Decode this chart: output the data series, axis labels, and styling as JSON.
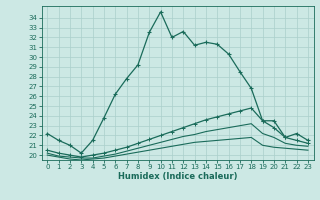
{
  "xlabel": "Humidex (Indice chaleur)",
  "xlim": [
    -0.5,
    23.5
  ],
  "ylim": [
    19.5,
    35.2
  ],
  "xticks": [
    0,
    1,
    2,
    3,
    4,
    5,
    6,
    7,
    8,
    9,
    10,
    11,
    12,
    13,
    14,
    15,
    16,
    17,
    18,
    19,
    20,
    21,
    22,
    23
  ],
  "yticks": [
    20,
    21,
    22,
    23,
    24,
    25,
    26,
    27,
    28,
    29,
    30,
    31,
    32,
    33,
    34
  ],
  "bg_color": "#cce8e4",
  "grid_color": "#aacfcb",
  "line_color": "#1a6b5a",
  "line1_x": [
    0,
    1,
    2,
    3,
    4,
    5,
    6,
    7,
    8,
    9,
    10,
    11,
    12,
    13,
    14,
    15,
    16,
    17,
    18,
    19,
    20,
    21,
    22,
    23
  ],
  "line1_y": [
    22.2,
    21.5,
    21.0,
    20.2,
    21.5,
    23.8,
    26.2,
    27.8,
    29.2,
    32.5,
    34.6,
    32.0,
    32.6,
    31.2,
    31.5,
    31.3,
    30.3,
    28.5,
    26.8,
    23.5,
    23.5,
    21.8,
    22.2,
    21.5
  ],
  "line2_x": [
    0,
    1,
    2,
    3,
    4,
    5,
    6,
    7,
    8,
    9,
    10,
    11,
    12,
    13,
    14,
    15,
    16,
    17,
    18,
    19,
    20,
    21,
    22,
    23
  ],
  "line2_y": [
    20.5,
    20.2,
    20.0,
    19.8,
    20.0,
    20.2,
    20.5,
    20.8,
    21.2,
    21.6,
    22.0,
    22.4,
    22.8,
    23.2,
    23.6,
    23.9,
    24.2,
    24.5,
    24.8,
    23.5,
    22.8,
    21.8,
    21.5,
    21.2
  ],
  "line3_x": [
    0,
    1,
    2,
    3,
    4,
    5,
    6,
    7,
    8,
    9,
    10,
    11,
    12,
    13,
    14,
    15,
    16,
    17,
    18,
    19,
    20,
    21,
    22,
    23
  ],
  "line3_y": [
    20.2,
    19.9,
    19.8,
    19.7,
    19.7,
    19.9,
    20.1,
    20.4,
    20.7,
    21.0,
    21.3,
    21.6,
    21.9,
    22.1,
    22.4,
    22.6,
    22.8,
    23.0,
    23.2,
    22.2,
    21.8,
    21.2,
    21.0,
    20.9
  ],
  "line4_x": [
    0,
    1,
    2,
    3,
    4,
    5,
    6,
    7,
    8,
    9,
    10,
    11,
    12,
    13,
    14,
    15,
    16,
    17,
    18,
    19,
    20,
    21,
    22,
    23
  ],
  "line4_y": [
    20.0,
    19.8,
    19.6,
    19.5,
    19.6,
    19.7,
    19.9,
    20.1,
    20.3,
    20.5,
    20.7,
    20.9,
    21.1,
    21.3,
    21.4,
    21.5,
    21.6,
    21.7,
    21.8,
    21.0,
    20.8,
    20.7,
    20.6,
    20.5
  ]
}
